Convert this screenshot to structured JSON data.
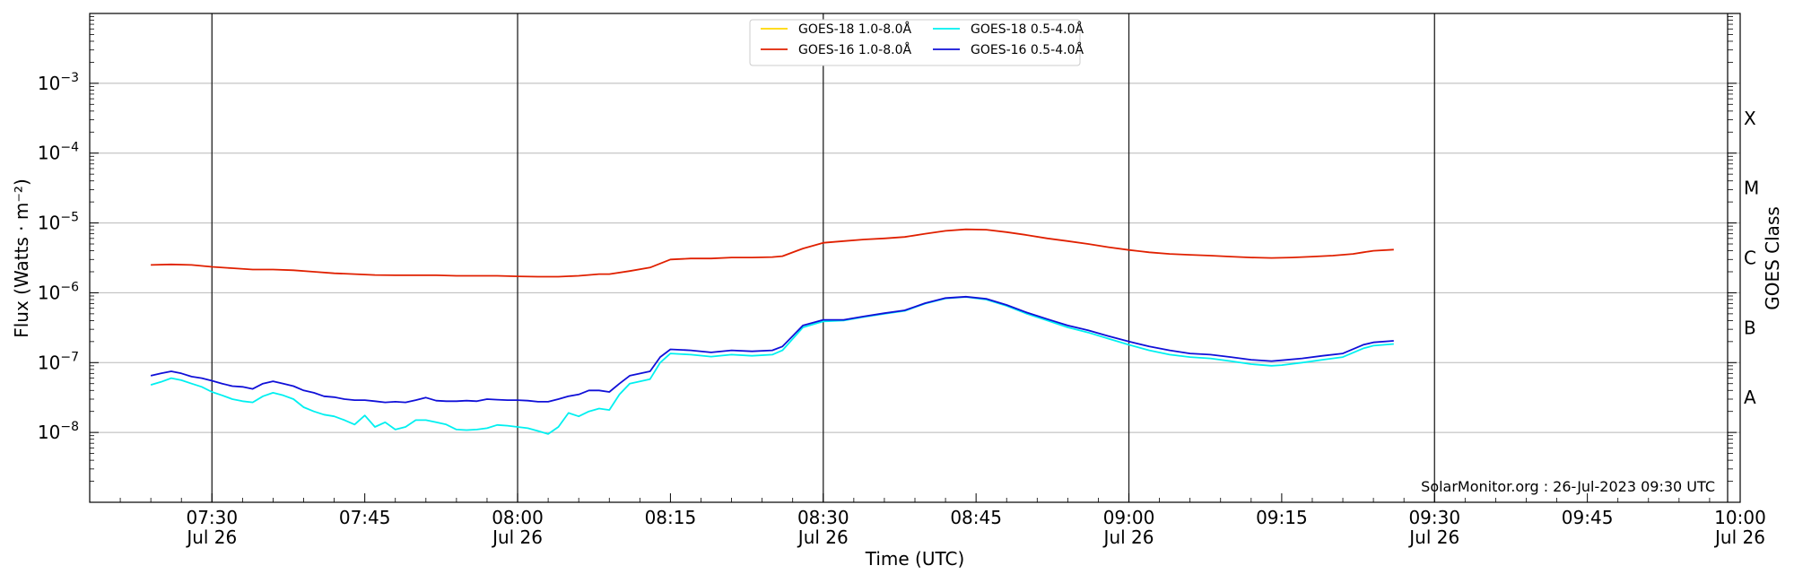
{
  "chart_data": {
    "type": "line",
    "xlabel": "Time (UTC)",
    "ylabel_left": "Flux (Watts · m⁻²)",
    "ylabel_right": "GOES Class",
    "y_scale": "log",
    "ylim": [
      1e-09,
      0.01
    ],
    "xlim": [
      "07:18",
      "10:00"
    ],
    "grid": "horizontal major",
    "legend_position": "top-center",
    "x_ticks": [
      {
        "time": "07:30",
        "label": "07:30",
        "sublabel": "Jul 26"
      },
      {
        "time": "07:45",
        "label": "07:45",
        "sublabel": ""
      },
      {
        "time": "08:00",
        "label": "08:00",
        "sublabel": "Jul 26"
      },
      {
        "time": "08:15",
        "label": "08:15",
        "sublabel": ""
      },
      {
        "time": "08:30",
        "label": "08:30",
        "sublabel": "Jul 26"
      },
      {
        "time": "08:45",
        "label": "08:45",
        "sublabel": ""
      },
      {
        "time": "09:00",
        "label": "09:00",
        "sublabel": "Jul 26"
      },
      {
        "time": "09:15",
        "label": "09:15",
        "sublabel": ""
      },
      {
        "time": "09:30",
        "label": "09:30",
        "sublabel": "Jul 26"
      },
      {
        "time": "09:45",
        "label": "09:45",
        "sublabel": ""
      },
      {
        "time": "10:00",
        "label": "10:00",
        "sublabel": "Jul 26"
      }
    ],
    "vertical_lines": [
      "07:30",
      "08:00",
      "08:30",
      "09:00",
      "09:30"
    ],
    "y_ticks": [
      {
        "value": 1e-08,
        "base": "10",
        "exp": "−8"
      },
      {
        "value": 1e-07,
        "base": "10",
        "exp": "−7"
      },
      {
        "value": 1e-06,
        "base": "10",
        "exp": "−6"
      },
      {
        "value": 1e-05,
        "base": "10",
        "exp": "−5"
      },
      {
        "value": 0.0001,
        "base": "10",
        "exp": "−4"
      },
      {
        "value": 0.001,
        "base": "10",
        "exp": "−3"
      }
    ],
    "goes_classes": [
      {
        "label": "A",
        "value": 3.16e-08
      },
      {
        "label": "B",
        "value": 3.16e-07
      },
      {
        "label": "C",
        "value": 3.16e-06
      },
      {
        "label": "M",
        "value": 3.16e-05
      },
      {
        "label": "X",
        "value": 0.000316
      }
    ],
    "annotation": "SolarMonitor.org : 26-Jul-2023 09:30 UTC",
    "series": [
      {
        "name": "GOES-18 1.0-8.0Å",
        "color": "#ffd700",
        "points": []
      },
      {
        "name": "GOES-16 1.0-8.0Å",
        "color": "#e02000",
        "points": [
          [
            "07:24",
            2.5e-06
          ],
          [
            "07:26",
            2.55e-06
          ],
          [
            "07:28",
            2.5e-06
          ],
          [
            "07:30",
            2.35e-06
          ],
          [
            "07:32",
            2.25e-06
          ],
          [
            "07:34",
            2.15e-06
          ],
          [
            "07:36",
            2.15e-06
          ],
          [
            "07:38",
            2.1e-06
          ],
          [
            "07:40",
            2e-06
          ],
          [
            "07:42",
            1.9e-06
          ],
          [
            "07:44",
            1.85e-06
          ],
          [
            "07:46",
            1.8e-06
          ],
          [
            "07:48",
            1.78e-06
          ],
          [
            "07:50",
            1.78e-06
          ],
          [
            "07:52",
            1.78e-06
          ],
          [
            "07:54",
            1.75e-06
          ],
          [
            "07:56",
            1.75e-06
          ],
          [
            "07:58",
            1.75e-06
          ],
          [
            "08:00",
            1.72e-06
          ],
          [
            "08:02",
            1.7e-06
          ],
          [
            "08:04",
            1.7e-06
          ],
          [
            "08:06",
            1.75e-06
          ],
          [
            "08:08",
            1.85e-06
          ],
          [
            "08:09",
            1.85e-06
          ],
          [
            "08:11",
            2.05e-06
          ],
          [
            "08:13",
            2.3e-06
          ],
          [
            "08:15",
            3e-06
          ],
          [
            "08:17",
            3.1e-06
          ],
          [
            "08:19",
            3.1e-06
          ],
          [
            "08:21",
            3.2e-06
          ],
          [
            "08:23",
            3.2e-06
          ],
          [
            "08:25",
            3.25e-06
          ],
          [
            "08:26",
            3.35e-06
          ],
          [
            "08:28",
            4.3e-06
          ],
          [
            "08:30",
            5.2e-06
          ],
          [
            "08:32",
            5.5e-06
          ],
          [
            "08:34",
            5.8e-06
          ],
          [
            "08:36",
            6e-06
          ],
          [
            "08:38",
            6.3e-06
          ],
          [
            "08:40",
            7e-06
          ],
          [
            "08:42",
            7.7e-06
          ],
          [
            "08:44",
            8.1e-06
          ],
          [
            "08:46",
            8e-06
          ],
          [
            "08:48",
            7.4e-06
          ],
          [
            "08:50",
            6.7e-06
          ],
          [
            "08:52",
            6e-06
          ],
          [
            "08:54",
            5.5e-06
          ],
          [
            "08:56",
            5e-06
          ],
          [
            "08:58",
            4.5e-06
          ],
          [
            "09:00",
            4.1e-06
          ],
          [
            "09:02",
            3.8e-06
          ],
          [
            "09:04",
            3.6e-06
          ],
          [
            "09:06",
            3.5e-06
          ],
          [
            "09:08",
            3.4e-06
          ],
          [
            "09:10",
            3.3e-06
          ],
          [
            "09:12",
            3.2e-06
          ],
          [
            "09:14",
            3.15e-06
          ],
          [
            "09:16",
            3.2e-06
          ],
          [
            "09:18",
            3.3e-06
          ],
          [
            "09:20",
            3.4e-06
          ],
          [
            "09:22",
            3.6e-06
          ],
          [
            "09:23",
            3.8e-06
          ],
          [
            "09:24",
            4e-06
          ],
          [
            "09:26",
            4.15e-06
          ]
        ]
      },
      {
        "name": "GOES-18 0.5-4.0Å",
        "color": "#00f0f0",
        "points": [
          [
            "07:24",
            4.8e-08
          ],
          [
            "07:25",
            5.3e-08
          ],
          [
            "07:26",
            6e-08
          ],
          [
            "07:27",
            5.6e-08
          ],
          [
            "07:28",
            5e-08
          ],
          [
            "07:29",
            4.5e-08
          ],
          [
            "07:30",
            3.8e-08
          ],
          [
            "07:31",
            3.4e-08
          ],
          [
            "07:32",
            3e-08
          ],
          [
            "07:33",
            2.8e-08
          ],
          [
            "07:34",
            2.7e-08
          ],
          [
            "07:35",
            3.3e-08
          ],
          [
            "07:36",
            3.7e-08
          ],
          [
            "07:37",
            3.4e-08
          ],
          [
            "07:38",
            3e-08
          ],
          [
            "07:39",
            2.3e-08
          ],
          [
            "07:40",
            2e-08
          ],
          [
            "07:41",
            1.8e-08
          ],
          [
            "07:42",
            1.7e-08
          ],
          [
            "07:43",
            1.5e-08
          ],
          [
            "07:44",
            1.3e-08
          ],
          [
            "07:45",
            1.75e-08
          ],
          [
            "07:46",
            1.2e-08
          ],
          [
            "07:47",
            1.4e-08
          ],
          [
            "07:48",
            1.1e-08
          ],
          [
            "07:49",
            1.2e-08
          ],
          [
            "07:50",
            1.5e-08
          ],
          [
            "07:51",
            1.5e-08
          ],
          [
            "07:52",
            1.4e-08
          ],
          [
            "07:53",
            1.3e-08
          ],
          [
            "07:54",
            1.1e-08
          ],
          [
            "07:55",
            1.08e-08
          ],
          [
            "07:56",
            1.1e-08
          ],
          [
            "07:57",
            1.15e-08
          ],
          [
            "07:58",
            1.28e-08
          ],
          [
            "07:59",
            1.25e-08
          ],
          [
            "08:00",
            1.2e-08
          ],
          [
            "08:01",
            1.15e-08
          ],
          [
            "08:02",
            1.05e-08
          ],
          [
            "08:03",
            9.5e-09
          ],
          [
            "08:04",
            1.2e-08
          ],
          [
            "08:05",
            1.9e-08
          ],
          [
            "08:06",
            1.7e-08
          ],
          [
            "08:07",
            2e-08
          ],
          [
            "08:08",
            2.2e-08
          ],
          [
            "08:09",
            2.1e-08
          ],
          [
            "08:10",
            3.5e-08
          ],
          [
            "08:11",
            5e-08
          ],
          [
            "08:13",
            5.8e-08
          ],
          [
            "08:14",
            1e-07
          ],
          [
            "08:15",
            1.35e-07
          ],
          [
            "08:17",
            1.3e-07
          ],
          [
            "08:19",
            1.22e-07
          ],
          [
            "08:21",
            1.3e-07
          ],
          [
            "08:23",
            1.25e-07
          ],
          [
            "08:25",
            1.3e-07
          ],
          [
            "08:26",
            1.5e-07
          ],
          [
            "08:28",
            3.2e-07
          ],
          [
            "08:30",
            3.9e-07
          ],
          [
            "08:32",
            4e-07
          ],
          [
            "08:34",
            4.5e-07
          ],
          [
            "08:36",
            5e-07
          ],
          [
            "08:38",
            5.5e-07
          ],
          [
            "08:40",
            7e-07
          ],
          [
            "08:42",
            8.3e-07
          ],
          [
            "08:44",
            8.7e-07
          ],
          [
            "08:46",
            8e-07
          ],
          [
            "08:48",
            6.5e-07
          ],
          [
            "08:50",
            5e-07
          ],
          [
            "08:52",
            4e-07
          ],
          [
            "08:54",
            3.2e-07
          ],
          [
            "08:56",
            2.7e-07
          ],
          [
            "08:58",
            2.2e-07
          ],
          [
            "09:00",
            1.8e-07
          ],
          [
            "09:02",
            1.5e-07
          ],
          [
            "09:04",
            1.3e-07
          ],
          [
            "09:06",
            1.2e-07
          ],
          [
            "09:08",
            1.15e-07
          ],
          [
            "09:10",
            1.05e-07
          ],
          [
            "09:12",
            9.5e-08
          ],
          [
            "09:14",
            9e-08
          ],
          [
            "09:15",
            9.2e-08
          ],
          [
            "09:17",
            1e-07
          ],
          [
            "09:19",
            1.1e-07
          ],
          [
            "09:21",
            1.2e-07
          ],
          [
            "09:23",
            1.6e-07
          ],
          [
            "09:24",
            1.75e-07
          ],
          [
            "09:26",
            1.85e-07
          ]
        ]
      },
      {
        "name": "GOES-16 0.5-4.0Å",
        "color": "#1010d8",
        "points": [
          [
            "07:24",
            6.5e-08
          ],
          [
            "07:25",
            7e-08
          ],
          [
            "07:26",
            7.5e-08
          ],
          [
            "07:27",
            7e-08
          ],
          [
            "07:28",
            6.3e-08
          ],
          [
            "07:29",
            6e-08
          ],
          [
            "07:30",
            5.5e-08
          ],
          [
            "07:31",
            5e-08
          ],
          [
            "07:32",
            4.6e-08
          ],
          [
            "07:33",
            4.5e-08
          ],
          [
            "07:34",
            4.2e-08
          ],
          [
            "07:35",
            5e-08
          ],
          [
            "07:36",
            5.4e-08
          ],
          [
            "07:37",
            5e-08
          ],
          [
            "07:38",
            4.6e-08
          ],
          [
            "07:39",
            4e-08
          ],
          [
            "07:40",
            3.7e-08
          ],
          [
            "07:41",
            3.3e-08
          ],
          [
            "07:42",
            3.2e-08
          ],
          [
            "07:43",
            3e-08
          ],
          [
            "07:44",
            2.9e-08
          ],
          [
            "07:45",
            2.9e-08
          ],
          [
            "07:46",
            2.8e-08
          ],
          [
            "07:47",
            2.7e-08
          ],
          [
            "07:48",
            2.75e-08
          ],
          [
            "07:49",
            2.7e-08
          ],
          [
            "07:50",
            2.9e-08
          ],
          [
            "07:51",
            3.15e-08
          ],
          [
            "07:52",
            2.85e-08
          ],
          [
            "07:53",
            2.8e-08
          ],
          [
            "07:54",
            2.8e-08
          ],
          [
            "07:55",
            2.85e-08
          ],
          [
            "07:56",
            2.8e-08
          ],
          [
            "07:57",
            3e-08
          ],
          [
            "07:58",
            2.95e-08
          ],
          [
            "07:59",
            2.9e-08
          ],
          [
            "08:00",
            2.9e-08
          ],
          [
            "08:01",
            2.85e-08
          ],
          [
            "08:02",
            2.75e-08
          ],
          [
            "08:03",
            2.75e-08
          ],
          [
            "08:04",
            3e-08
          ],
          [
            "08:05",
            3.3e-08
          ],
          [
            "08:06",
            3.5e-08
          ],
          [
            "08:07",
            4e-08
          ],
          [
            "08:08",
            4e-08
          ],
          [
            "08:09",
            3.8e-08
          ],
          [
            "08:10",
            5e-08
          ],
          [
            "08:11",
            6.5e-08
          ],
          [
            "08:13",
            7.5e-08
          ],
          [
            "08:14",
            1.2e-07
          ],
          [
            "08:15",
            1.55e-07
          ],
          [
            "08:17",
            1.5e-07
          ],
          [
            "08:19",
            1.4e-07
          ],
          [
            "08:21",
            1.5e-07
          ],
          [
            "08:23",
            1.45e-07
          ],
          [
            "08:25",
            1.5e-07
          ],
          [
            "08:26",
            1.7e-07
          ],
          [
            "08:28",
            3.4e-07
          ],
          [
            "08:30",
            4.1e-07
          ],
          [
            "08:32",
            4.1e-07
          ],
          [
            "08:34",
            4.6e-07
          ],
          [
            "08:36",
            5.1e-07
          ],
          [
            "08:38",
            5.6e-07
          ],
          [
            "08:40",
            7.1e-07
          ],
          [
            "08:42",
            8.4e-07
          ],
          [
            "08:44",
            8.8e-07
          ],
          [
            "08:46",
            8.2e-07
          ],
          [
            "08:48",
            6.7e-07
          ],
          [
            "08:50",
            5.2e-07
          ],
          [
            "08:52",
            4.2e-07
          ],
          [
            "08:54",
            3.4e-07
          ],
          [
            "08:56",
            2.9e-07
          ],
          [
            "08:58",
            2.4e-07
          ],
          [
            "09:00",
            2e-07
          ],
          [
            "09:02",
            1.7e-07
          ],
          [
            "09:04",
            1.5e-07
          ],
          [
            "09:06",
            1.35e-07
          ],
          [
            "09:08",
            1.3e-07
          ],
          [
            "09:10",
            1.2e-07
          ],
          [
            "09:12",
            1.1e-07
          ],
          [
            "09:14",
            1.05e-07
          ],
          [
            "09:15",
            1.08e-07
          ],
          [
            "09:17",
            1.15e-07
          ],
          [
            "09:19",
            1.25e-07
          ],
          [
            "09:21",
            1.35e-07
          ],
          [
            "09:23",
            1.8e-07
          ],
          [
            "09:24",
            1.95e-07
          ],
          [
            "09:26",
            2.05e-07
          ]
        ]
      }
    ]
  }
}
